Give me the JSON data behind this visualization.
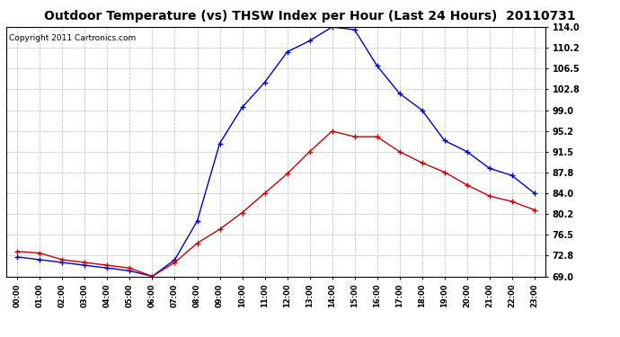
{
  "title": "Outdoor Temperature (vs) THSW Index per Hour (Last 24 Hours)  20110731",
  "copyright": "Copyright 2011 Cartronics.com",
  "x_labels": [
    "00:00",
    "01:00",
    "02:00",
    "03:00",
    "04:00",
    "05:00",
    "06:00",
    "07:00",
    "08:00",
    "09:00",
    "10:00",
    "11:00",
    "12:00",
    "13:00",
    "14:00",
    "15:00",
    "16:00",
    "17:00",
    "18:00",
    "19:00",
    "20:00",
    "21:00",
    "22:00",
    "23:00"
  ],
  "temp_data": [
    73.5,
    73.2,
    72.0,
    71.5,
    71.0,
    70.5,
    69.0,
    71.5,
    75.0,
    77.5,
    80.5,
    84.0,
    87.5,
    91.5,
    95.2,
    94.2,
    94.2,
    91.5,
    89.5,
    87.8,
    85.5,
    83.5,
    82.5,
    81.0
  ],
  "thsw_data": [
    72.5,
    72.0,
    71.5,
    71.0,
    70.5,
    70.0,
    69.0,
    72.0,
    79.0,
    93.0,
    99.5,
    104.0,
    109.5,
    111.5,
    114.0,
    113.5,
    107.0,
    102.0,
    99.0,
    93.5,
    91.5,
    88.5,
    87.2,
    84.0
  ],
  "temp_color": "#cc0000",
  "thsw_color": "#0000cc",
  "y_min": 69.0,
  "y_max": 114.0,
  "y_ticks": [
    69.0,
    72.8,
    76.5,
    80.2,
    84.0,
    87.8,
    91.5,
    95.2,
    99.0,
    102.8,
    106.5,
    110.2,
    114.0
  ],
  "background_color": "#ffffff",
  "plot_bg_color": "#ffffff",
  "grid_color": "#aaaaaa",
  "title_fontsize": 10,
  "copyright_fontsize": 6.5
}
